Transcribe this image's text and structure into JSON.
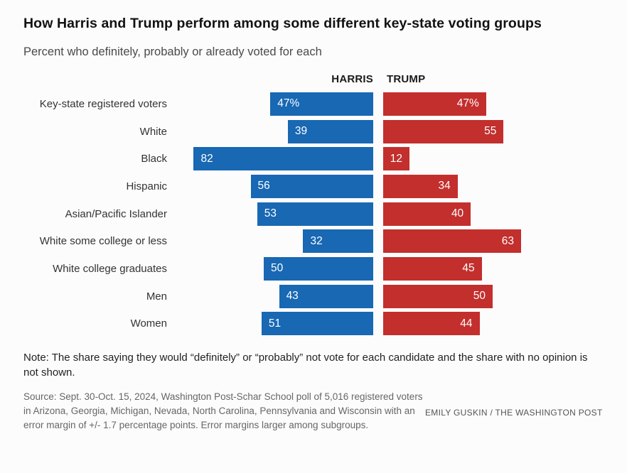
{
  "page": {
    "title": "How Harris and Trump perform among some different key-state voting groups",
    "subtitle": "Percent who definitely, probably or already voted for each",
    "note": "Note: The share saying they would “definitely” or “probably” not vote for each candidate and the share with no opinion is not shown.",
    "source": "Source: Sept. 30-Oct. 15, 2024, Washington Post-Schar School poll of 5,016 registered voters in Arizona, Georgia, Michigan, Nevada, North Carolina, Pennsylvania and Wisconsin with an error margin of +/- 1.7 percentage points. Error margins larger among subgroups.",
    "credit": "EMILY GUSKIN / THE WASHINGTON POST"
  },
  "colors": {
    "harris": "#1868b3",
    "trump": "#c22f2d",
    "bar_text": "#ffffff"
  },
  "chart_data": {
    "type": "bar",
    "orientation": "horizontal-diverging",
    "title": "How Harris and Trump perform among some different key-state voting groups",
    "subtitle": "Percent who definitely, probably or already voted for each",
    "xlabel": "",
    "ylabel": "",
    "xlim": [
      0,
      100
    ],
    "grid": false,
    "legend_position": "top-center-of-bars",
    "categories": [
      "Key-state registered voters",
      "White",
      "Black",
      "Hispanic",
      "Asian/Pacific Islander",
      "White some college or less",
      "White college graduates",
      "Men",
      "Women"
    ],
    "series": [
      {
        "name": "HARRIS",
        "color": "#1868b3",
        "direction": "left",
        "values": [
          47,
          39,
          82,
          56,
          53,
          32,
          50,
          43,
          51
        ],
        "labels": [
          "47%",
          "39",
          "82",
          "56",
          "53",
          "32",
          "50",
          "43",
          "51"
        ]
      },
      {
        "name": "TRUMP",
        "color": "#c22f2d",
        "direction": "right",
        "values": [
          47,
          55,
          12,
          34,
          40,
          63,
          45,
          50,
          44
        ],
        "labels": [
          "47%",
          "55",
          "12",
          "34",
          "40",
          "63",
          "45",
          "50",
          "44"
        ]
      }
    ]
  }
}
